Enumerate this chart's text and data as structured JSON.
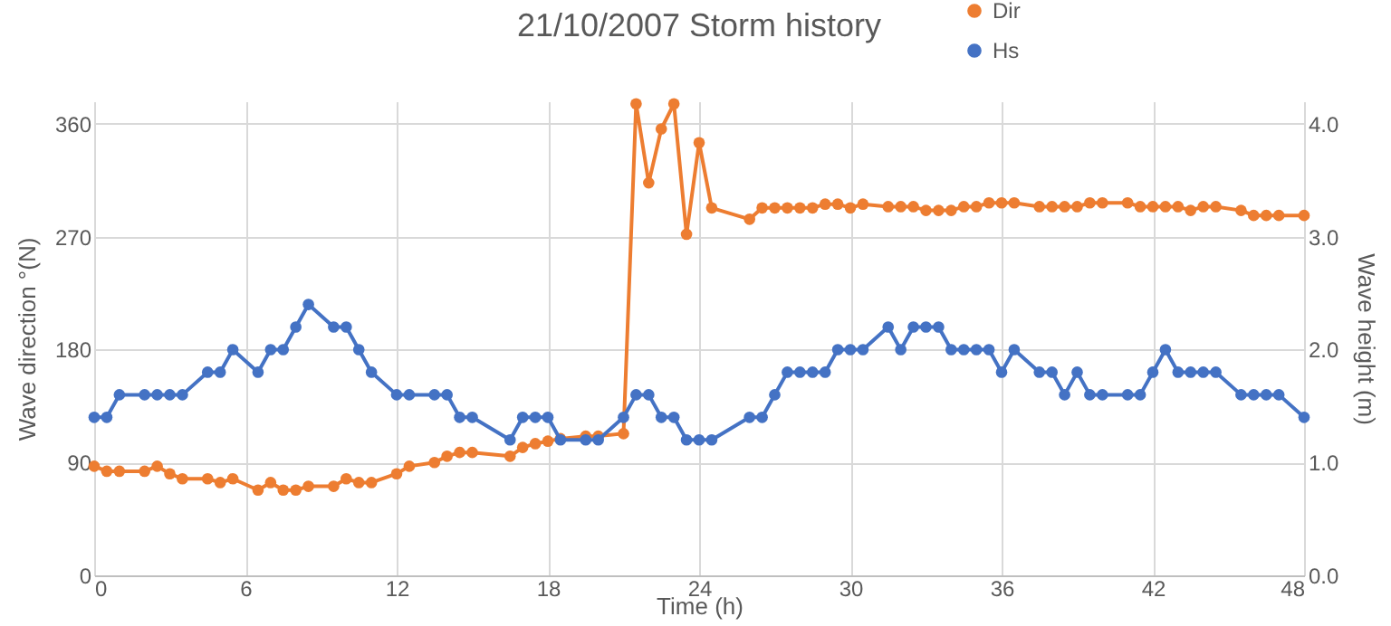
{
  "chart_data": {
    "type": "line",
    "title": "21/10/2007 Storm history",
    "xlabel": "Time (h)",
    "ylabel": "Wave direction °(N)",
    "y2label": "Wave height (m)",
    "x": [
      0,
      0.5,
      1,
      2,
      2.5,
      3,
      3.5,
      4.5,
      5,
      5.5,
      6.5,
      7,
      7.5,
      8,
      8.5,
      9.5,
      10,
      10.5,
      11,
      12,
      12.5,
      13.5,
      14,
      14.5,
      15,
      16.5,
      17,
      17.5,
      18,
      18.5,
      19.5,
      20,
      21,
      21.5,
      22,
      22.5,
      23,
      23.5,
      24,
      24.5,
      26,
      26.5,
      27,
      27.5,
      28,
      28.5,
      29,
      29.5,
      30,
      30.5,
      31.5,
      32,
      32.5,
      33,
      33.5,
      34,
      34.5,
      35,
      35.5,
      36,
      36.5,
      37.5,
      38,
      38.5,
      39,
      39.5,
      40,
      41,
      41.5,
      42,
      42.5,
      43,
      43.5,
      44,
      44.5,
      45.5,
      46,
      46.5,
      47,
      48
    ],
    "series": [
      {
        "name": "Dir",
        "color": "#ed7d31",
        "values": [
          87,
          83,
          83,
          83,
          87,
          81,
          77,
          77,
          74,
          77,
          68,
          74,
          68,
          68,
          71,
          71,
          77,
          74,
          74,
          81,
          87,
          90,
          95,
          98,
          98,
          95,
          102,
          105,
          107,
          109,
          111,
          111,
          113,
          376,
          313,
          356,
          376,
          272,
          345,
          293,
          284,
          293,
          293,
          293,
          293,
          293,
          296,
          296,
          293,
          296,
          294,
          294,
          294,
          291,
          291,
          291,
          294,
          294,
          297,
          297,
          297,
          294,
          294,
          294,
          294,
          297,
          297,
          297,
          294,
          294,
          294,
          294,
          291,
          294,
          294,
          291,
          287,
          287,
          287,
          287
        ]
      },
      {
        "name": "Hs",
        "color": "#4472c4",
        "axis": "y2",
        "values": [
          1.4,
          1.4,
          1.6,
          1.6,
          1.6,
          1.6,
          1.6,
          1.8,
          1.8,
          2.0,
          1.8,
          2.0,
          2.0,
          2.2,
          2.4,
          2.2,
          2.2,
          2.0,
          1.8,
          1.6,
          1.6,
          1.6,
          1.6,
          1.4,
          1.4,
          1.2,
          1.4,
          1.4,
          1.4,
          1.2,
          1.2,
          1.2,
          1.4,
          1.6,
          1.6,
          1.4,
          1.4,
          1.2,
          1.2,
          1.2,
          1.4,
          1.4,
          1.6,
          1.8,
          1.8,
          1.8,
          1.8,
          2.0,
          2.0,
          2.0,
          2.2,
          2.0,
          2.2,
          2.2,
          2.2,
          2.0,
          2.0,
          2.0,
          2.0,
          1.8,
          2.0,
          1.8,
          1.8,
          1.6,
          1.8,
          1.6,
          1.6,
          1.6,
          1.6,
          1.8,
          2.0,
          1.8,
          1.8,
          1.8,
          1.8,
          1.6,
          1.6,
          1.6,
          1.6,
          1.4
        ]
      }
    ],
    "xlim": [
      0,
      48
    ],
    "xticks": [
      0,
      6,
      12,
      18,
      24,
      30,
      36,
      42,
      48
    ],
    "ylim": [
      0,
      378
    ],
    "yticks": [
      0,
      90,
      180,
      270,
      360
    ],
    "y2lim": [
      0,
      4.2
    ],
    "y2ticks": [
      {
        "value": 0,
        "label": "0.0"
      },
      {
        "value": 1,
        "label": "1.0"
      },
      {
        "value": 2,
        "label": "2.0"
      },
      {
        "value": 3,
        "label": "3.0"
      },
      {
        "value": 4,
        "label": "4.0"
      }
    ],
    "grid": true,
    "legend": "top right",
    "marker": "circle",
    "line_style": "solid"
  }
}
